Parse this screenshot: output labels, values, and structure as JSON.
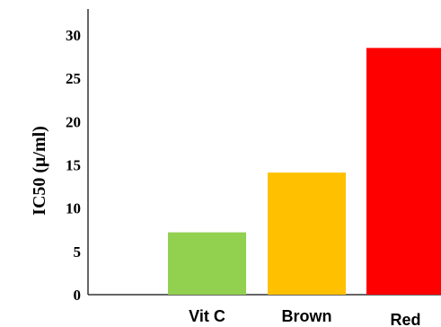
{
  "chart_data": {
    "type": "bar",
    "ylabel": "IC50 (μ/ml)",
    "xlabel": "",
    "ylim": [
      0,
      33
    ],
    "yticks": [
      0,
      5,
      10,
      15,
      20,
      25,
      30
    ],
    "grid": false,
    "categories": [
      "Vit C",
      "Brown",
      "Red"
    ],
    "values": [
      7.2,
      14.1,
      28.5
    ],
    "colors": [
      "#92d050",
      "#ffc000",
      "#ff0000"
    ]
  }
}
